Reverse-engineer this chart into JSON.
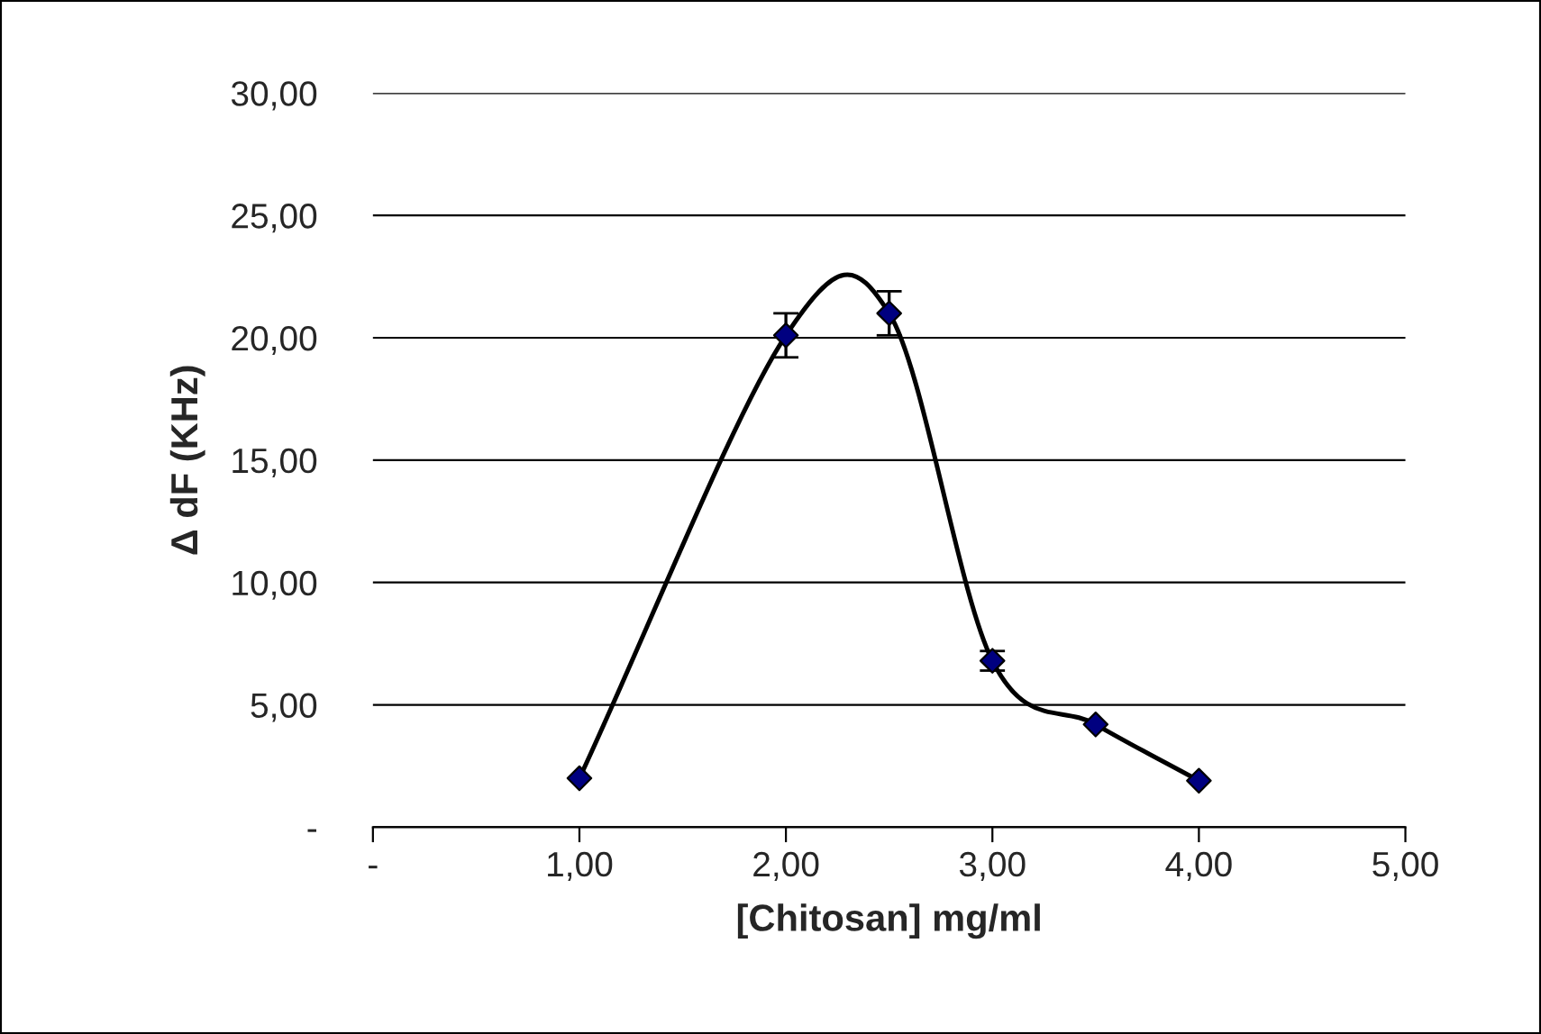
{
  "chart_data": {
    "type": "line",
    "xlabel": "[Chitosan] mg/ml",
    "ylabel": "Δ dF (KHz)",
    "x": [
      1,
      2,
      2.5,
      3,
      3.5,
      4
    ],
    "series": [
      {
        "color": "#000080",
        "values": [
          2.0,
          20.1,
          21.0,
          6.8,
          4.2,
          1.9
        ],
        "errors": [
          null,
          0.9,
          0.9,
          0.4,
          null,
          null
        ]
      }
    ],
    "xlim": [
      0,
      5
    ],
    "xticks": [
      {
        "value": 0,
        "label": "-"
      },
      {
        "value": 1,
        "label": "1,00"
      },
      {
        "value": 2,
        "label": "2,00"
      },
      {
        "value": 3,
        "label": "3,00"
      },
      {
        "value": 4,
        "label": "4,00"
      },
      {
        "value": 5,
        "label": "5,00"
      }
    ],
    "ylim": [
      0,
      30
    ],
    "yticks": [
      {
        "value": 0,
        "label": "-"
      },
      {
        "value": 5,
        "label": "5,00"
      },
      {
        "value": 10,
        "label": "10,00"
      },
      {
        "value": 15,
        "label": "15,00"
      },
      {
        "value": 20,
        "label": "20,00"
      },
      {
        "value": 25,
        "label": "25,00"
      },
      {
        "value": 30,
        "label": "30,00"
      }
    ],
    "grid": "y",
    "marker": "diamond",
    "line_style": "solid",
    "legend": false
  }
}
